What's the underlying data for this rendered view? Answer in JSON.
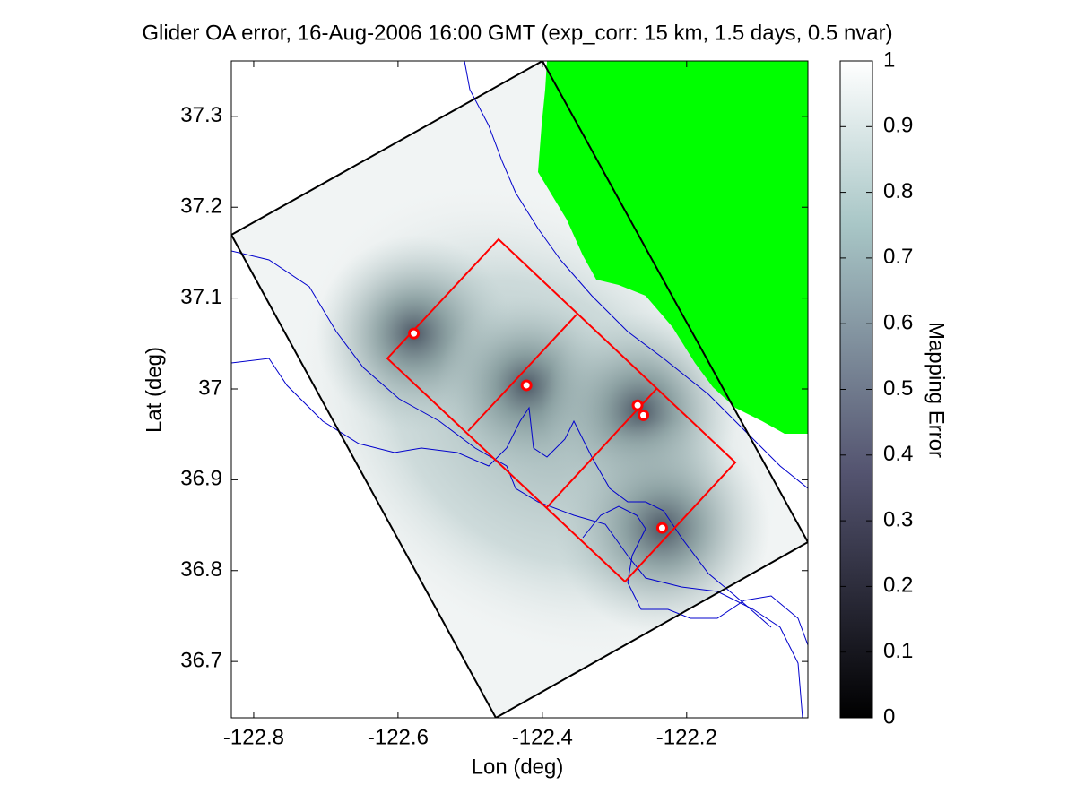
{
  "chart_data": {
    "type": "scatter",
    "title": "Glider OA error, 16-Aug-2006 16:00 GMT (exp_corr: 15 km, 1.5 days, 0.5 nvar)",
    "xlabel": "Lon (deg)",
    "ylabel": "Lat (deg)",
    "xlim": [
      -122.831,
      -122.032
    ],
    "ylim": [
      36.638,
      37.361
    ],
    "xticks": [
      -122.8,
      -122.6,
      -122.4,
      -122.2
    ],
    "yticks": [
      36.7,
      36.8,
      36.9,
      37,
      37.1,
      37.2,
      37.3
    ],
    "x": [
      -122.578,
      -122.422,
      -122.268,
      -122.26,
      -122.234
    ],
    "y": [
      37.061,
      37.004,
      36.982,
      36.971,
      36.847
    ],
    "color": "#ff0000",
    "colorbar": {
      "label": "Mapping Error",
      "lim": [
        0,
        1
      ],
      "ticks": [
        0,
        0.1,
        0.2,
        0.3,
        0.4,
        0.5,
        0.6,
        0.7,
        0.8,
        0.9,
        1
      ]
    }
  }
}
